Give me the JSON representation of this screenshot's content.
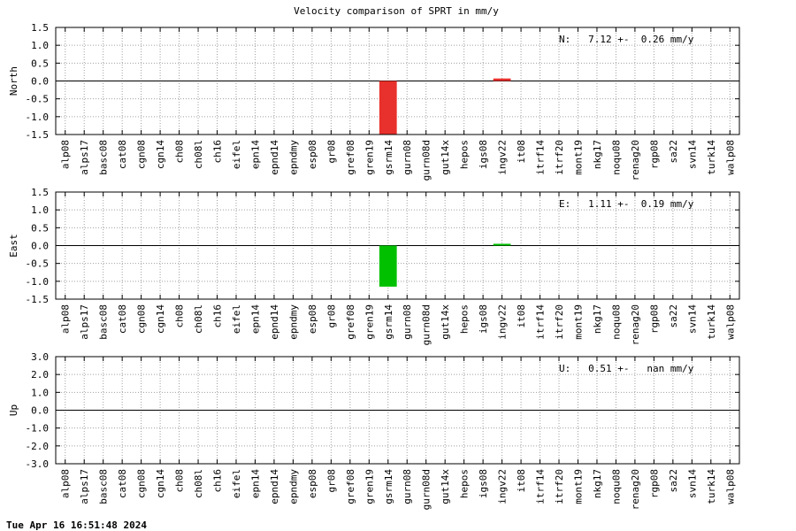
{
  "title": "Velocity comparison of SPRT in mm/y",
  "footer": "Tue Apr 16 16:51:48 2024",
  "chart_data": [
    {
      "type": "bar",
      "ylabel": "North",
      "annotation": "N:   7.12 +-  0.26 mm/y",
      "color": "#e8302c",
      "grid": true,
      "categories": [
        "alp08",
        "alps17",
        "basc08",
        "cat08",
        "cgn08",
        "cgn14",
        "ch08",
        "ch08l",
        "ch16",
        "eifel",
        "epn14",
        "epnd14",
        "epndmy",
        "esp08",
        "gr08",
        "gref08",
        "gren19",
        "gsrm14",
        "gurn08",
        "gurn08d",
        "gut14x",
        "hepos",
        "igs08",
        "ingv22",
        "it08",
        "itrf14",
        "itrf20",
        "mont19",
        "nkg17",
        "noqu08",
        "renag20",
        "rgp08",
        "sa22",
        "svn14",
        "turk14",
        "walp08"
      ],
      "values": [
        null,
        null,
        null,
        null,
        null,
        null,
        null,
        null,
        null,
        null,
        null,
        null,
        null,
        null,
        null,
        null,
        null,
        -1.6,
        null,
        null,
        null,
        null,
        null,
        0.07,
        null,
        null,
        null,
        null,
        null,
        null,
        null,
        null,
        null,
        null,
        null,
        null
      ],
      "ylim": [
        -1.5,
        1.5
      ],
      "yticks": [
        -1.5,
        {
          "value": -1,
          "label": "-1.0"
        },
        -0.5,
        {
          "value": 0,
          "label": "0.0"
        },
        0.5,
        {
          "value": 1,
          "label": "1.0"
        },
        1.5
      ]
    },
    {
      "type": "bar",
      "ylabel": "East",
      "annotation": "E:   1.11 +-  0.19 mm/y",
      "color": "#00c000",
      "grid": true,
      "categories": [
        "alp08",
        "alps17",
        "basc08",
        "cat08",
        "cgn08",
        "cgn14",
        "ch08",
        "ch08l",
        "ch16",
        "eifel",
        "epn14",
        "epnd14",
        "epndmy",
        "esp08",
        "gr08",
        "gref08",
        "gren19",
        "gsrm14",
        "gurn08",
        "gurn08d",
        "gut14x",
        "hepos",
        "igs08",
        "ingv22",
        "it08",
        "itrf14",
        "itrf20",
        "mont19",
        "nkg17",
        "noqu08",
        "renag20",
        "rgp08",
        "sa22",
        "svn14",
        "turk14",
        "walp08"
      ],
      "values": [
        null,
        null,
        null,
        null,
        null,
        null,
        null,
        null,
        null,
        null,
        null,
        null,
        null,
        null,
        null,
        null,
        null,
        -1.15,
        null,
        null,
        null,
        null,
        null,
        0.05,
        null,
        null,
        null,
        null,
        null,
        null,
        null,
        null,
        null,
        null,
        null,
        null
      ],
      "ylim": [
        -1.5,
        1.5
      ],
      "yticks": [
        -1.5,
        {
          "value": -1,
          "label": "-1.0"
        },
        -0.5,
        {
          "value": 0,
          "label": "0.0"
        },
        0.5,
        {
          "value": 1,
          "label": "1.0"
        },
        1.5
      ]
    },
    {
      "type": "bar",
      "ylabel": "Up",
      "annotation": "U:   0.51 +-   nan mm/y",
      "color": "#0000e0",
      "grid": true,
      "categories": [
        "alp08",
        "alps17",
        "basc08",
        "cat08",
        "cgn08",
        "cgn14",
        "ch08",
        "ch08l",
        "ch16",
        "eifel",
        "epn14",
        "epnd14",
        "epndmy",
        "esp08",
        "gr08",
        "gref08",
        "gren19",
        "gsrm14",
        "gurn08",
        "gurn08d",
        "gut14x",
        "hepos",
        "igs08",
        "ingv22",
        "it08",
        "itrf14",
        "itrf20",
        "mont19",
        "nkg17",
        "noqu08",
        "renag20",
        "rgp08",
        "sa22",
        "svn14",
        "turk14",
        "walp08"
      ],
      "values": [
        null,
        null,
        null,
        null,
        null,
        null,
        null,
        null,
        null,
        null,
        null,
        null,
        null,
        null,
        null,
        null,
        null,
        null,
        null,
        null,
        null,
        null,
        null,
        null,
        null,
        null,
        null,
        null,
        null,
        null,
        null,
        null,
        null,
        null,
        null,
        null
      ],
      "ylim": [
        -3,
        3
      ],
      "yticks": [
        {
          "value": -3,
          "label": "-3.0"
        },
        {
          "value": -2,
          "label": "-2.0"
        },
        {
          "value": -1,
          "label": "-1.0"
        },
        {
          "value": 0,
          "label": "0.0"
        },
        {
          "value": 1,
          "label": "1.0"
        },
        {
          "value": 2,
          "label": "2.0"
        },
        {
          "value": 3,
          "label": "3.0"
        }
      ]
    }
  ]
}
